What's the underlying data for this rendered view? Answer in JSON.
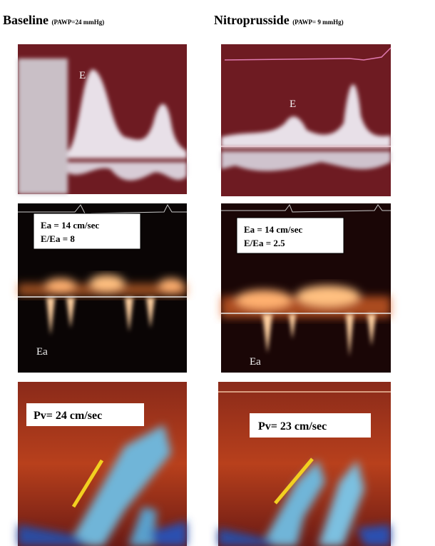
{
  "columns": [
    {
      "title": "Baseline",
      "subtitle": "(PAWP=24 mmHg)",
      "mitral": {
        "label": "E"
      },
      "tissue": {
        "box": [
          "Ea = 14 cm/sec",
          "E/Ea = 8"
        ],
        "label": "Ea"
      },
      "pulmonary": {
        "label": "Pv= 24 cm/sec"
      }
    },
    {
      "title": "Nitroprusside",
      "subtitle": "(PAWP= 9 mmHg)",
      "mitral": {
        "label": "E"
      },
      "tissue": {
        "box": [
          "Ea = 14 cm/sec",
          "E/Ea = 2.5"
        ],
        "label": "Ea"
      },
      "pulmonary": {
        "label": "Pv= 23 cm/sec"
      }
    }
  ]
}
